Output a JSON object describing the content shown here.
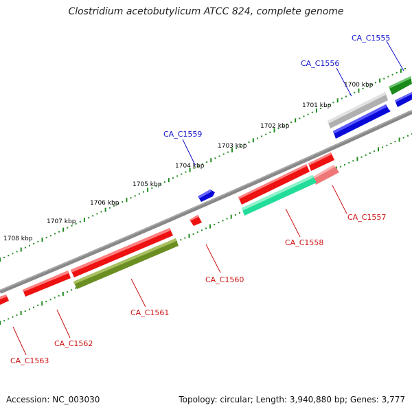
{
  "title": "Clostridium acetobutylicum ATCC 824, complete genome",
  "footer": {
    "accession": "Accession: NC_003030",
    "info": "Topology: circular; Length: 3,940,880 bp; Genes: 3,777"
  },
  "colors": {
    "backbone": "#888888",
    "tick": "#1e8a1e",
    "label_forward": "#1010cc",
    "label_reverse": "#cc1010"
  },
  "ruler": {
    "unit": "kbp",
    "labels": [
      "1700 kbp",
      "1701 kbp",
      "1702 kbp",
      "1703 kbp",
      "1704 kbp",
      "1705 kbp",
      "1706 kbp",
      "1707 kbp",
      "1708 kbp"
    ]
  },
  "genes": [
    {
      "name": "CA_C1555",
      "strand": "forward",
      "color": "#1a8a1a"
    },
    {
      "name": "CA_C1556",
      "strand": "forward",
      "color": "#b0b0b0"
    },
    {
      "name": "CA_C1559",
      "strand": "forward",
      "color": "#0a0ad8"
    },
    {
      "name": "CA_C1557",
      "strand": "reverse",
      "color": "#ee7777"
    },
    {
      "name": "CA_C1558",
      "strand": "reverse",
      "color": "#22dd99"
    },
    {
      "name": "CA_C1560",
      "strand": "reverse",
      "color": "#ee1111"
    },
    {
      "name": "CA_C1561",
      "strand": "reverse",
      "color": "#6b8e23"
    },
    {
      "name": "CA_C1562",
      "strand": "reverse",
      "color": "#ee1111"
    },
    {
      "name": "CA_C1563",
      "strand": "reverse",
      "color": "#ee1111"
    }
  ]
}
